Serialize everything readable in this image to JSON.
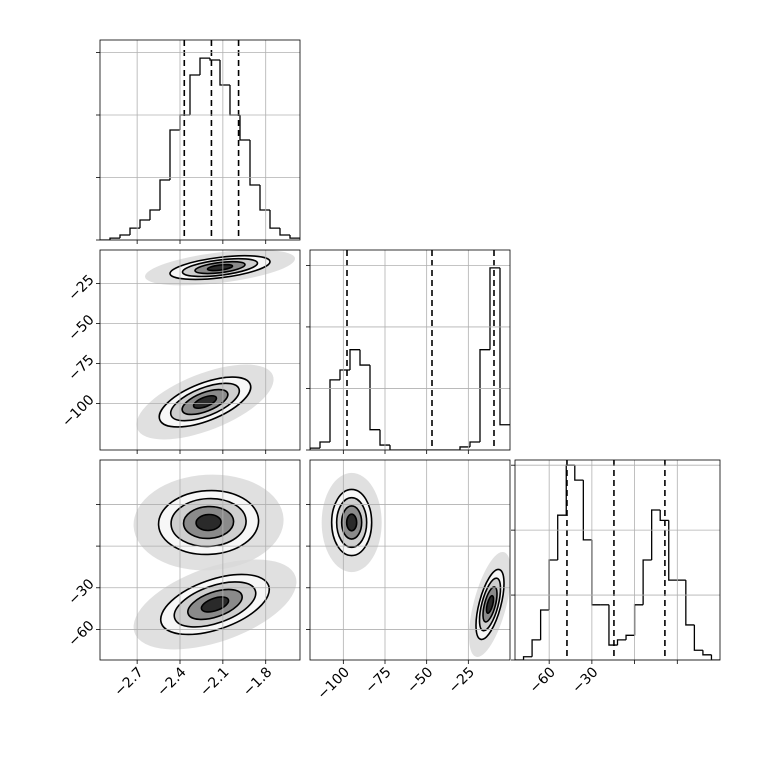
{
  "chart_data": [
    {
      "type": "histogram",
      "xlim": [
        -2.96,
        -1.56
      ],
      "ylim": [
        0,
        3.2
      ],
      "xticks": [
        -2.7,
        -2.4,
        -2.1,
        -1.8
      ],
      "yticks": [
        0,
        1,
        2,
        3
      ],
      "grid": true,
      "color": "#000000",
      "bins": [
        -2.96,
        -2.89,
        -2.82,
        -2.75,
        -2.68,
        -2.61,
        -2.54,
        -2.47,
        -2.4,
        -2.33,
        -2.26,
        -2.19,
        -2.12,
        -2.05,
        -1.98,
        -1.91,
        -1.84,
        -1.77,
        -1.7,
        -1.63,
        -1.56
      ],
      "counts": [
        0,
        0.03,
        0.08,
        0.19,
        0.32,
        0.48,
        0.96,
        1.76,
        2.0,
        2.64,
        2.91,
        2.88,
        2.48,
        2.0,
        1.6,
        0.88,
        0.48,
        0.19,
        0.08,
        0.03
      ],
      "quantiles": [
        -2.37,
        -2.18,
        -1.99
      ]
    },
    {
      "type": "density",
      "xlim": [
        -2.96,
        -1.56
      ],
      "ylim": [
        -129,
        -4
      ],
      "xticks": [
        -2.7,
        -2.4,
        -2.1,
        -1.8
      ],
      "yticks": [
        {
          "value": -100,
          "label": "−100"
        },
        {
          "value": -75,
          "label": "−75"
        },
        {
          "value": -50,
          "label": "−50"
        },
        {
          "value": -25,
          "label": "−25"
        }
      ],
      "grid": true,
      "color": "#000000",
      "blobs": [
        {
          "x": -2.12,
          "y": -15,
          "sx": 0.175,
          "sy": 3.7,
          "rho": 0.5
        },
        {
          "x": -2.225,
          "y": -99,
          "sx": 0.16,
          "sy": 7.8,
          "rho": 0.6
        }
      ]
    },
    {
      "type": "histogram",
      "xlim": [
        -120,
        0
      ],
      "ylim": [
        0,
        3.25
      ],
      "xticks": [
        -100,
        -75,
        -50,
        -25
      ],
      "yticks": [
        0,
        1,
        2,
        3
      ],
      "grid": true,
      "color": "#000000",
      "bins": [
        -120,
        -114,
        -108,
        -102,
        -96,
        -90,
        -84,
        -78,
        -72,
        -66,
        -60,
        -54,
        -48,
        -42,
        -36,
        -30,
        -24,
        -18,
        -12,
        -6,
        0
      ],
      "counts": [
        0.03,
        0.13,
        1.14,
        1.3,
        1.63,
        1.38,
        0.33,
        0.08,
        0,
        0,
        0,
        0,
        0,
        0,
        0,
        0.05,
        0.13,
        1.63,
        2.96,
        0.41
      ],
      "quantiles": [
        -97.8,
        -46.8,
        -9.6
      ]
    },
    {
      "type": "density",
      "xlim": [
        -2.96,
        -1.56
      ],
      "ylim": [
        -82,
        62
      ],
      "xticks": [
        {
          "value": -2.7,
          "label": "−2.7"
        },
        {
          "value": -2.4,
          "label": "−2.4"
        },
        {
          "value": -2.1,
          "label": "−2.1"
        },
        {
          "value": -1.8,
          "label": "−1.8"
        }
      ],
      "yticks": [
        {
          "value": -60,
          "label": "−60"
        },
        {
          "value": -30,
          "label": "−30"
        },
        0,
        30
      ],
      "grid": true,
      "color": "#000000",
      "blobs": [
        {
          "x": -2.2,
          "y": 17,
          "sx": 0.175,
          "sy": 11.5,
          "rho": 0.05
        },
        {
          "x": -2.155,
          "y": -42,
          "sx": 0.19,
          "sy": 10.8,
          "rho": 0.5
        }
      ]
    },
    {
      "type": "density",
      "xlim": [
        -120,
        0
      ],
      "ylim": [
        -82,
        62
      ],
      "xticks": [
        {
          "value": -100,
          "label": "−100"
        },
        {
          "value": -75,
          "label": "−75"
        },
        {
          "value": -50,
          "label": "−50"
        },
        {
          "value": -25,
          "label": "−25"
        }
      ],
      "yticks": [
        -60,
        -30,
        0,
        30
      ],
      "grid": true,
      "color": "#000000",
      "blobs": [
        {
          "x": -95,
          "y": 17,
          "sx": 6,
          "sy": 11.9,
          "rho": 0
        },
        {
          "x": -12,
          "y": -42,
          "sx": 4.2,
          "sy": 12.6,
          "rho": 0.6
        }
      ]
    },
    {
      "type": "histogram",
      "xlim": [
        -84,
        60
      ],
      "ylim": [
        0,
        3.08
      ],
      "xticks": [
        {
          "value": -60,
          "label": "−60"
        },
        {
          "value": -30,
          "label": "−30"
        },
        0,
        30
      ],
      "yticks": [
        0,
        1,
        2,
        3
      ],
      "grid": true,
      "color": "#000000",
      "bins": [
        -84,
        -78,
        -72,
        -66,
        -60,
        -54,
        -48,
        -42,
        -36,
        -30,
        -24,
        -18,
        -12,
        -6,
        0,
        6,
        12,
        18,
        24,
        30,
        36,
        42,
        48,
        54,
        60
      ],
      "counts": [
        0,
        0.05,
        0.31,
        0.77,
        1.54,
        2.23,
        3.0,
        2.77,
        1.85,
        0.85,
        0.85,
        0.23,
        0.31,
        0.38,
        0.85,
        1.54,
        2.31,
        2.15,
        1.23,
        1.23,
        0.54,
        0.15,
        0.08,
        0
      ],
      "quantiles": [
        -47.5,
        -14.5,
        21.3
      ]
    }
  ]
}
